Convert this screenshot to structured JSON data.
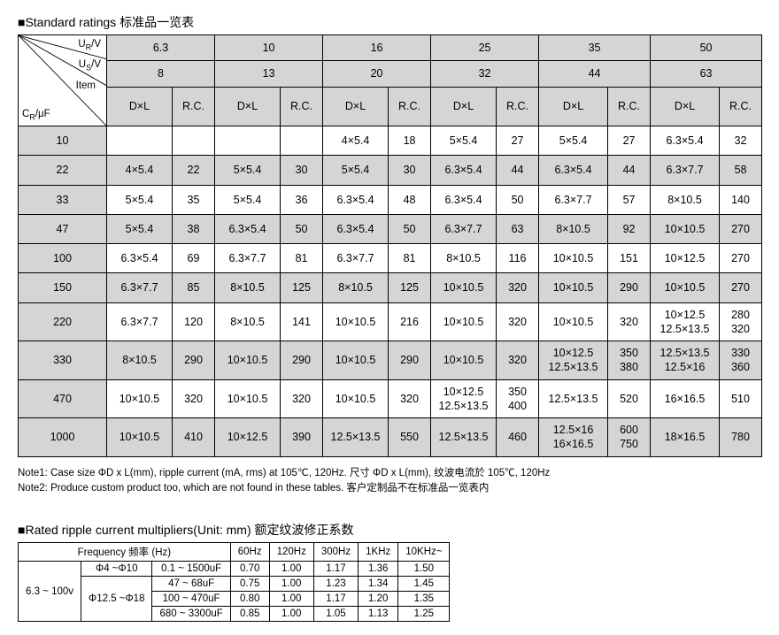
{
  "title1": "■Standard ratings  标准品一览表",
  "corner": {
    "ur": "U",
    "ur_sub": "R",
    "ur_suffix": "/V",
    "us": "U",
    "us_sub": "S",
    "us_suffix": "/V",
    "item": "Item",
    "cr": "C",
    "cr_sub": "R",
    "cr_suffix": "/μF"
  },
  "ur_values": [
    "6.3",
    "10",
    "16",
    "25",
    "35",
    "50"
  ],
  "us_values": [
    "8",
    "13",
    "20",
    "32",
    "44",
    "63"
  ],
  "col_sub": {
    "dxl": "D×L",
    "rc": "R.C."
  },
  "cap_labels": [
    "10",
    "22",
    "33",
    "47",
    "100",
    "150",
    "220",
    "330",
    "470",
    "1000"
  ],
  "cells": [
    [
      "",
      "",
      "",
      "",
      "4×5.4",
      "18",
      "5×5.4",
      "27",
      "5×5.4",
      "27",
      "6.3×5.4",
      "32"
    ],
    [
      "4×5.4",
      "22",
      "5×5.4",
      "30",
      "5×5.4",
      "30",
      "6.3×5.4",
      "44",
      "6.3×5.4",
      "44",
      "6.3×7.7",
      "58"
    ],
    [
      "5×5.4",
      "35",
      "5×5.4",
      "36",
      "6.3×5.4",
      "48",
      "6.3×5.4",
      "50",
      "6.3×7.7",
      "57",
      "8×10.5",
      "140"
    ],
    [
      "5×5.4",
      "38",
      "6.3×5.4",
      "50",
      "6.3×5.4",
      "50",
      "6.3×7.7",
      "63",
      "8×10.5",
      "92",
      "10×10.5",
      "270"
    ],
    [
      "6.3×5.4",
      "69",
      "6.3×7.7",
      "81",
      "6.3×7.7",
      "81",
      "8×10.5",
      "116",
      "10×10.5",
      "151",
      "10×12.5",
      "270"
    ],
    [
      "6.3×7.7",
      "85",
      "8×10.5",
      "125",
      "8×10.5",
      "125",
      "10×10.5",
      "320",
      "10×10.5",
      "290",
      "10×10.5",
      "270"
    ],
    [
      "6.3×7.7",
      "120",
      "8×10.5",
      "141",
      "10×10.5",
      "216",
      "10×10.5",
      "320",
      "10×10.5",
      "320",
      "10×12.5\n12.5×13.5",
      "280\n320"
    ],
    [
      "8×10.5",
      "290",
      "10×10.5",
      "290",
      "10×10.5",
      "290",
      "10×10.5",
      "320",
      "10×12.5\n12.5×13.5",
      "350\n380",
      "12.5×13.5\n12.5×16",
      "330\n360"
    ],
    [
      "10×10.5",
      "320",
      "10×10.5",
      "320",
      "10×10.5",
      "320",
      "10×12.5\n12.5×13.5",
      "350\n400",
      "12.5×13.5",
      "520",
      "16×16.5",
      "510"
    ],
    [
      "10×10.5",
      "410",
      "10×12.5",
      "390",
      "12.5×13.5",
      "550",
      "12.5×13.5",
      "460",
      "12.5×16\n16×16.5",
      "600\n750",
      "18×16.5",
      "780"
    ]
  ],
  "note1": "Note1: Case size ΦD x L(mm), ripple current (mA, rms) at 105℃, 120Hz.   尺寸 ΦD x L(mm),  纹波电流於 105℃, 120Hz",
  "note2": "Note2: Produce custom product too, which are not found in these tables.  客户定制品不在标准品一览表内",
  "title2": "■Rated ripple current multipliers(Unit: mm)  额定纹波修正系数",
  "ripple": {
    "freq_label": "Frequency  频率  (Hz)",
    "freq_cols": [
      "60Hz",
      "120Hz",
      "300Hz",
      "1KHz",
      "10KHz~"
    ],
    "volt": "6.3 ~ 100v",
    "phi1": "Φ4 ~Φ10",
    "phi2": "Φ12.5 ~Φ18",
    "ranges": [
      "0.1 ~ 1500uF",
      "47 ~ 68uF",
      "100 ~ 470uF",
      "680 ~ 3300uF"
    ],
    "vals": [
      [
        "0.70",
        "1.00",
        "1.17",
        "1.36",
        "1.50"
      ],
      [
        "0.75",
        "1.00",
        "1.23",
        "1.34",
        "1.45"
      ],
      [
        "0.80",
        "1.00",
        "1.17",
        "1.20",
        "1.35"
      ],
      [
        "0.85",
        "1.00",
        "1.05",
        "1.13",
        "1.25"
      ]
    ]
  }
}
